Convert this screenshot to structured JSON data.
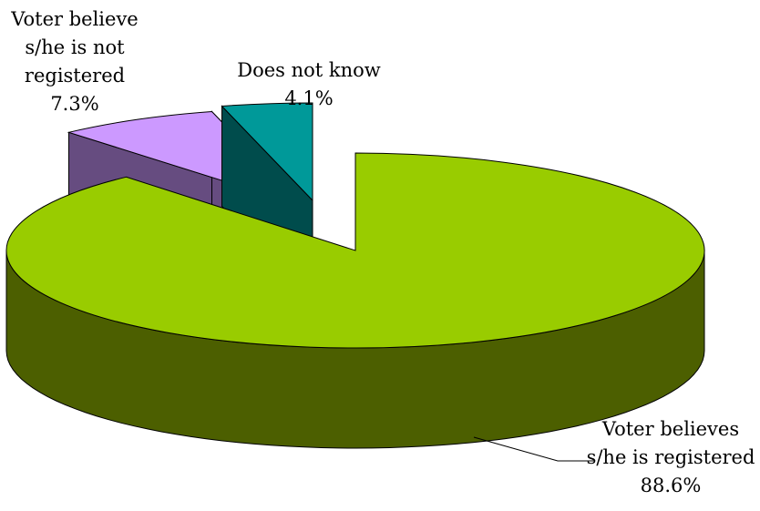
{
  "chart_data": {
    "type": "pie",
    "categories": [
      "Voter believes s/he is registered",
      "Voter believe s/he is not registered",
      "Does not know"
    ],
    "values": [
      88.6,
      7.3,
      4.1
    ],
    "unit": "%",
    "three_d": true,
    "exploded": true,
    "labels": {
      "registered": {
        "line1": "Voter believes",
        "line2": "s/he is registered",
        "value": "88.6%"
      },
      "not_registered": {
        "line1": "Voter believe",
        "line2": "s/he is not",
        "line3": "registered",
        "value": "7.3%"
      },
      "does_not_know": {
        "line1": "Does not know",
        "value": "4.1%"
      }
    },
    "colors": {
      "registered_top": "#99CC00",
      "registered_side": "#4C5F00",
      "not_registered_top": "#CC99FF",
      "not_registered_side": "#664C80",
      "does_not_know_top": "#009999",
      "does_not_know_side": "#004C4C",
      "outline": "#000000"
    }
  }
}
